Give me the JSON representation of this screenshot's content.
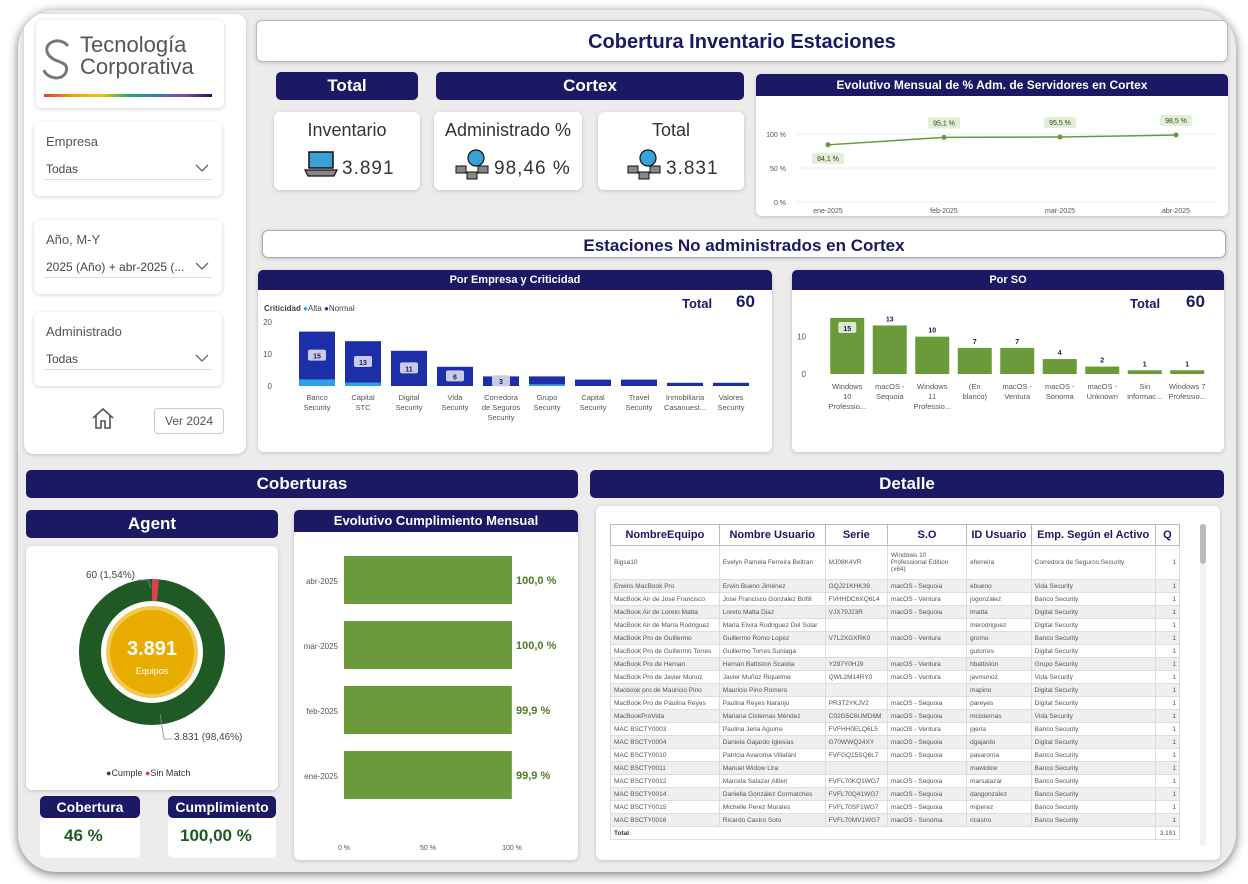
{
  "logo": {
    "line1": "Tecnología",
    "line2": "Corporativa"
  },
  "title": "Cobertura Inventario Estaciones",
  "slicers": [
    {
      "label": "Empresa",
      "value": "Todas"
    },
    {
      "label": "Año, M-Y",
      "value": "2025 (Año) + abr-2025 (..."
    },
    {
      "label": "Administrado",
      "value": "Todas"
    }
  ],
  "ver_button": "Ver 2024",
  "headers": {
    "total": "Total",
    "cortex": "Cortex",
    "no_admin": "Estaciones No administrados en Cortex",
    "coberturas": "Coberturas",
    "detalle": "Detalle",
    "agent": "Agent",
    "evolutivo_cump": "Evolutivo Cumplimiento Mensual"
  },
  "kpis": {
    "inventario": {
      "label": "Inventario",
      "value": "3.891"
    },
    "administrado": {
      "label": "Administrado %",
      "value": "98,46 %"
    },
    "total": {
      "label": "Total",
      "value": "3.831"
    }
  },
  "emp_card": {
    "title": "Por Empresa y Criticidad",
    "legend_title": "Criticidad",
    "legend_alta": "Alta",
    "legend_normal": "Normal",
    "total_label": "Total",
    "total_value": "60"
  },
  "so_card": {
    "title": "Por SO",
    "total_label": "Total",
    "total_value": "60"
  },
  "bottom_kpis": {
    "cobertura_label": "Cobertura",
    "cobertura_value": "46 %",
    "cumplimiento_label": "Cumplimiento",
    "cumplimiento_value": "100,00 %"
  },
  "donut": {
    "center_value": "3.891",
    "center_label": "Equipos",
    "label_small": "60 (1,54%)",
    "label_big": "3.831 (98,46%)",
    "legend_cumple": "Cumple",
    "legend_sin": "Sin Match"
  },
  "colors": {
    "navy": "#1b1864",
    "green": "#6b9a3b",
    "dark_green": "#1f5a24",
    "gold": "#e8ac00",
    "red": "#d9434c",
    "alta": "#2aa1e8",
    "normal": "#1c2fa8"
  },
  "chart_data": [
    {
      "type": "line",
      "title": "Evolutivo Mensual de % Adm. de Servidores en Cortex",
      "categories": [
        "ene-2025",
        "feb-2025",
        "mar-2025",
        "abr-2025"
      ],
      "values": [
        84.1,
        95.1,
        95.5,
        98.5
      ],
      "value_labels": [
        "84,1 %",
        "95,1 %",
        "95,5 %",
        "98,5 %"
      ],
      "ylim": [
        0,
        100
      ],
      "yticks": [
        "0 %",
        "50 %",
        "100 %"
      ]
    },
    {
      "type": "bar",
      "title": "Por Empresa y Criticidad",
      "categories": [
        "Banco Security",
        "Capital STC",
        "Digital Security",
        "Vida Security",
        "Corredora de Seguros Security",
        "Grupo Security",
        "Capital Security",
        "Travel Security",
        "Inmobiliaria Casanuest...",
        "Valores Security"
      ],
      "series": [
        {
          "name": "Alta",
          "values": [
            2,
            1,
            0,
            0,
            0,
            0.5,
            0,
            0,
            0,
            0
          ]
        },
        {
          "name": "Normal",
          "values": [
            15,
            13,
            11,
            6,
            3,
            2.5,
            2,
            2,
            1,
            1
          ]
        }
      ],
      "labels": [
        "15",
        "13",
        "11",
        "6",
        "3"
      ],
      "ylim": [
        0,
        20
      ],
      "yticks": [
        "0",
        "10",
        "20"
      ]
    },
    {
      "type": "bar",
      "title": "Por SO",
      "categories": [
        "Windows 10 Professio...",
        "macOS - Sequoia",
        "Windows 11 Professio...",
        "(En blanco)",
        "macOS - Ventura",
        "macOS - Sonoma",
        "macOS - Unknown",
        "Sin informac...",
        "Windows 7 Professio..."
      ],
      "values": [
        15,
        13,
        10,
        7,
        7,
        4,
        2,
        1,
        1
      ],
      "labels": [
        "15",
        "13",
        "10",
        "7",
        "7",
        "4",
        "2",
        "1",
        "1"
      ],
      "ylim": [
        0,
        15
      ],
      "yticks": [
        "0",
        "10"
      ]
    },
    {
      "type": "pie",
      "title": "Agent",
      "slices": [
        {
          "name": "Cumple",
          "value": 3831
        },
        {
          "name": "Sin Match",
          "value": 60
        }
      ]
    },
    {
      "type": "bar",
      "title": "Evolutivo Cumplimiento Mensual",
      "orientation": "horizontal",
      "categories": [
        "abr-2025",
        "mar-2025",
        "feb-2025",
        "ene-2025"
      ],
      "values": [
        100.0,
        100.0,
        99.9,
        99.9
      ],
      "labels": [
        "100,0 %",
        "100,0 %",
        "99,9 %",
        "99,9 %"
      ],
      "xticks": [
        "0 %",
        "50 %",
        "100 %"
      ]
    }
  ],
  "table": {
    "columns": [
      "NombreEquipo",
      "Nombre Usuario",
      "Serie",
      "S.O",
      "ID Usuario",
      "Emp. Según el Activo",
      "Q"
    ],
    "rows": [
      [
        "Bigsa10",
        "Evelyn Pamela Ferreira Beltran",
        "MJ08K4VR",
        "Windows 10 Professional Edition (x64)",
        "eferreira",
        "Corredora de Seguros Security",
        "1"
      ],
      [
        "Erwins MacBook Pro",
        "Erwin Bueno Jiménez",
        "GQJ21KHK39",
        "macOS - Sequoia",
        "ebueno",
        "Vida Security",
        "1"
      ],
      [
        "MacBook Air de Jose Francisco",
        "Jose Francisco Gonzalez Bofill",
        "FVHHDC6XQ6L4",
        "macOS - Ventura",
        "jogonzalez",
        "Banco Security",
        "1"
      ],
      [
        "MacBook Air de Loreto Matta",
        "Loreto Matta Diaz",
        "VJX79J23R",
        "macOS - Sequoia",
        "lmatta",
        "Digital Security",
        "1"
      ],
      [
        "MacBook Air de María Rodriguez",
        "María Elvira Rodriguez Del Solar",
        "",
        "",
        "merodriguez",
        "Digital Security",
        "1"
      ],
      [
        "MacBook Pro de Guillermo",
        "Guillermo Romo Lopez",
        "V7L2XGXRK0",
        "macOS - Ventura",
        "gromo",
        "Banco Security",
        "1"
      ],
      [
        "MacBook Pro de Guillermo Torres",
        "Guillermo Torres Suniaga",
        "",
        "",
        "gutorres",
        "Digital Security",
        "1"
      ],
      [
        "MacBook Pro de Hernan",
        "Hernán Battiston Scaiola",
        "Y297Y0HJ9",
        "macOS - Ventura",
        "hbattiston",
        "Grupo Security",
        "1"
      ],
      [
        "MacBook Pro de Javier Munoz",
        "Javier Muñoz Riquelme",
        "QWL2M14RY0",
        "macOS - Ventura",
        "javmunoz",
        "Vida Security",
        "1"
      ],
      [
        "Macbook pro de Mauricio Pino",
        "Mauricio Pino Romero",
        "",
        "",
        "mapino",
        "Digital Security",
        "1"
      ],
      [
        "MacBook Pro de Paulina Reyes",
        "Paulina Reyes Naranjo",
        "PR3T2YKJV2",
        "macOS - Sequoia",
        "pareyes",
        "Digital Security",
        "1"
      ],
      [
        "MacBookProVida",
        "Mariana Cisternas Méndez",
        "C02G5C6UMD6M",
        "macOS - Sequoia",
        "mcisternas",
        "Vida Security",
        "1"
      ],
      [
        "MAC BSCTY0003",
        "Paulina Jeria Aguirre",
        "FVFHH0ELQ6L5",
        "macOS - Ventura",
        "pjeria",
        "Banco Security",
        "1"
      ],
      [
        "MAC BSCTY0004",
        "Daniela Gajardo Iglesias",
        "G70WWQ24XY",
        "macOS - Sequoia",
        "dgajardo",
        "Digital Security",
        "1"
      ],
      [
        "MAC BSCTY0010",
        "Patricia Avaroma Villafani",
        "FVFGQ15SQ6L7",
        "macOS - Sequoia",
        "pavaroma",
        "Banco Security",
        "1"
      ],
      [
        "MAC BSCTY0011",
        "Manuel Widow Lira",
        "",
        "",
        "mawidow",
        "Banco Security",
        "1"
      ],
      [
        "MAC BSCTY0012",
        "Marcela Salazar Altieri",
        "FVFL70KQ1WG7",
        "macOS - Sequoia",
        "marsalazar",
        "Banco Security",
        "1"
      ],
      [
        "MAC BSCTY0014",
        "Daniella González Cormatches",
        "FVFL70Q41WG7",
        "macOS - Sequoia",
        "dangonzalez",
        "Banco Security",
        "1"
      ],
      [
        "MAC BSCTY0015",
        "Michelle Perez Morales",
        "FVFL70SF1WG7",
        "macOS - Sequoia",
        "miperez",
        "Banco Security",
        "1"
      ],
      [
        "MAC BSCTY0016",
        "Ricardo Castro Soto",
        "FVFL70MV1WG7",
        "macOS - Sonoma",
        "ricastro",
        "Banco Security",
        "1"
      ]
    ],
    "total_label": "Total",
    "total_value": "3.191"
  }
}
